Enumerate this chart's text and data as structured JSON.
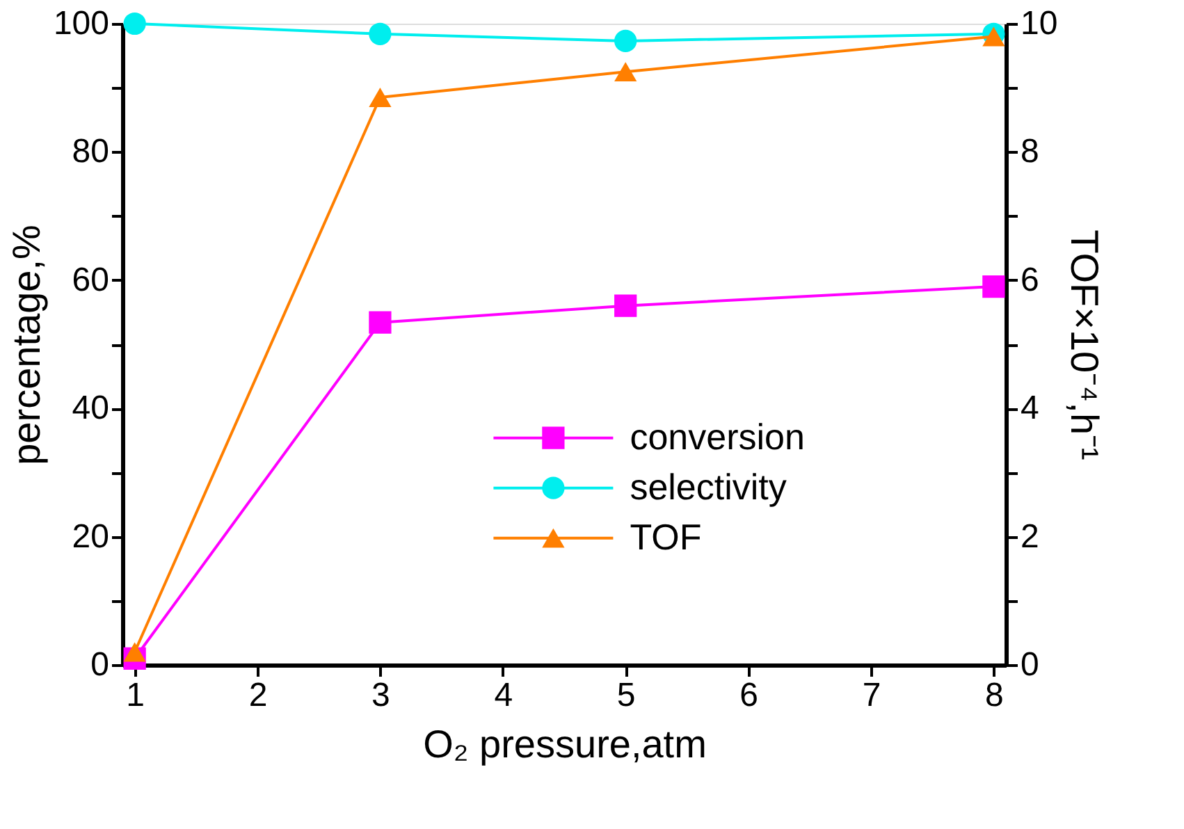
{
  "chart_data": {
    "type": "line",
    "xlabel": "O₂ pressure,atm",
    "ylabel": "percentage,%",
    "y2label": "TOF×10⁻⁴,h⁻¹",
    "x": [
      1,
      3,
      5,
      8
    ],
    "series": [
      {
        "name": "conversion",
        "color": "#ff00ff",
        "marker": "square",
        "values": [
          1,
          53.4,
          56,
          59
        ]
      },
      {
        "name": "selectivity",
        "color": "#00eeee",
        "marker": "circle",
        "values": [
          100,
          98.4,
          97.3,
          98.4
        ]
      },
      {
        "name": "TOF",
        "color": "#ff7f00",
        "marker": "triangle",
        "axis": "y2",
        "values": [
          0.2,
          8.85,
          9.25,
          9.8
        ]
      }
    ],
    "xlim": [
      0.9,
      8.1
    ],
    "xticks": [
      1,
      2,
      3,
      4,
      5,
      6,
      7,
      8
    ],
    "ylim": [
      0,
      100
    ],
    "yticks": [
      0,
      {
        "value": 10,
        "label": null
      },
      20,
      {
        "value": 30,
        "label": null
      },
      40,
      {
        "value": 50,
        "label": null
      },
      60,
      {
        "value": 70,
        "label": null
      },
      80,
      {
        "value": 90,
        "label": null
      },
      100
    ],
    "y2lim": [
      0,
      10
    ],
    "y2ticks": [
      0,
      {
        "value": 1,
        "label": null
      },
      2,
      {
        "value": 3,
        "label": null
      },
      4,
      {
        "value": 5,
        "label": null
      },
      6,
      {
        "value": 7,
        "label": null
      },
      8,
      {
        "value": 9,
        "label": null
      },
      10
    ],
    "legend": "bottom center",
    "grid": false,
    "line_style": "solid"
  }
}
